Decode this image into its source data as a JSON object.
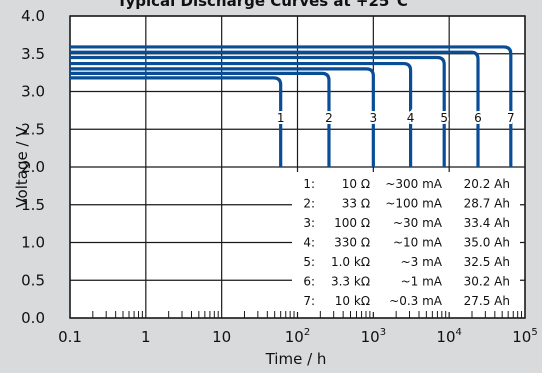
{
  "chart_data": {
    "type": "line",
    "title": "Typical Discharge Curves at +25°C",
    "xlabel": "Time / h",
    "ylabel": "Voltage / V",
    "xscale": "log",
    "xlim": [
      0.1,
      100000
    ],
    "ylim": [
      0.0,
      4.0
    ],
    "x_tick_labels": [
      {
        "value": 0.1,
        "base": "0.1",
        "exp": ""
      },
      {
        "value": 1,
        "base": "1",
        "exp": ""
      },
      {
        "value": 10,
        "base": "10",
        "exp": ""
      },
      {
        "value": 100,
        "base": "10",
        "exp": "2"
      },
      {
        "value": 1000,
        "base": "10",
        "exp": "3"
      },
      {
        "value": 10000,
        "base": "10",
        "exp": "4"
      },
      {
        "value": 100000,
        "base": "10",
        "exp": "5"
      }
    ],
    "y_tick_labels": [
      "0.0",
      "0.5",
      "1.0",
      "1.5",
      "2.0",
      "2.5",
      "3.0",
      "3.5",
      "4.0"
    ],
    "y_ticks": [
      0.0,
      0.5,
      1.0,
      1.5,
      2.0,
      2.5,
      3.0,
      3.5,
      4.0
    ],
    "grid": true,
    "series_color": "#0a4d97",
    "series": [
      {
        "name": "1",
        "plateau": 3.18,
        "end_time": 60
      },
      {
        "name": "2",
        "plateau": 3.24,
        "end_time": 260
      },
      {
        "name": "3",
        "plateau": 3.3,
        "end_time": 1000
      },
      {
        "name": "4",
        "plateau": 3.37,
        "end_time": 3100
      },
      {
        "name": "5",
        "plateau": 3.45,
        "end_time": 8600
      },
      {
        "name": "6",
        "plateau": 3.52,
        "end_time": 24000
      },
      {
        "name": "7",
        "plateau": 3.59,
        "end_time": 65000
      }
    ],
    "legend": [
      {
        "id": "1:",
        "load": "10 Ω",
        "current": "~300 mA",
        "capacity": "20.2 Ah"
      },
      {
        "id": "2:",
        "load": "33 Ω",
        "current": "~100 mA",
        "capacity": "28.7 Ah"
      },
      {
        "id": "3:",
        "load": "100 Ω",
        "current": "~30 mA",
        "capacity": "33.4 Ah"
      },
      {
        "id": "4:",
        "load": "330 Ω",
        "current": "~10 mA",
        "capacity": "35.0 Ah"
      },
      {
        "id": "5:",
        "load": "1.0 kΩ",
        "current": "~3 mA",
        "capacity": "32.5 Ah"
      },
      {
        "id": "6:",
        "load": "3.3 kΩ",
        "current": "~1 mA",
        "capacity": "30.2 Ah"
      },
      {
        "id": "7:",
        "load": "10 kΩ",
        "current": "~0.3 mA",
        "capacity": "27.5 Ah"
      }
    ],
    "legend_placement": "bottom-right"
  }
}
